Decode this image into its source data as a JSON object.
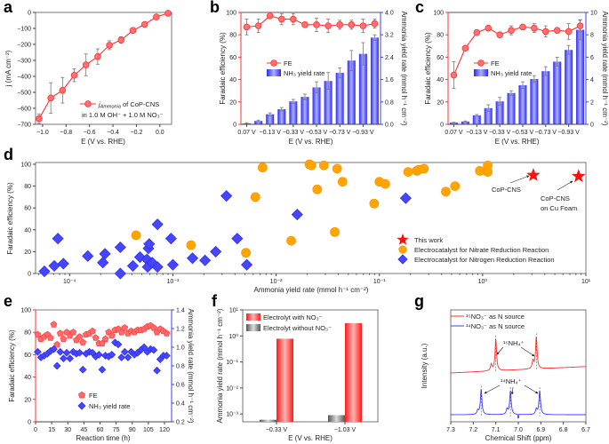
{
  "panel_letters": [
    "a",
    "b",
    "c",
    "d",
    "e",
    "f",
    "g"
  ],
  "colors": {
    "red": "#ff3030",
    "red_fill": "#ff7070",
    "blue": "#3c3cff",
    "orange": "#ffa500",
    "gray": "#777777"
  },
  "chart_data": [
    {
      "panel": "a",
      "type": "line",
      "x_label": "E (V vs. RHE)",
      "y_label": "j (mA cm⁻²)",
      "xlim": [
        -1.06,
        0.1
      ],
      "ylim": [
        -700,
        0
      ],
      "x_ticks": [
        -1.0,
        -0.8,
        -0.6,
        -0.4,
        -0.2,
        0.0
      ],
      "x_tick_labels": [
        "−1.0",
        "−0.8",
        "−0.6",
        "−0.4",
        "−0.2",
        "0.0"
      ],
      "y_ticks": [
        0,
        -100,
        -200,
        -300,
        -400,
        -500,
        -600,
        -700
      ],
      "y_tick_labels": [
        "0",
        "−100",
        "−200",
        "−300",
        "−400",
        "−500",
        "−600",
        "−700"
      ],
      "legend": {
        "symbol": "j",
        "sub": "Ammonia",
        "rest": " of CoP-CNS",
        "line2": "in 1.0 M OH⁻ + 1.0 M NO₃⁻"
      },
      "series": [
        {
          "x": [
            -1.03,
            -0.93,
            -0.83,
            -0.73,
            -0.63,
            -0.53,
            -0.43,
            -0.33,
            -0.23,
            -0.13,
            -0.03,
            0.07
          ],
          "y": [
            -665,
            -535,
            -487,
            -393,
            -328,
            -276,
            -205,
            -172,
            -113,
            -75,
            -28,
            -5
          ],
          "err": [
            30,
            95,
            80,
            40,
            68,
            48,
            28,
            20,
            15,
            8,
            8,
            5
          ]
        }
      ]
    },
    {
      "panel": "b",
      "type": "bar+line",
      "x_label": "E (V vs. RHE)",
      "y_label": "Faradaic efficiency (%)",
      "y2_label": "Ammonia yield rate (mmol h⁻¹ cm⁻²)",
      "categories": [
        "0.07 V",
        "−0.03 V",
        "−0.13 V",
        "−0.23 V",
        "−0.33 V",
        "−0.43 V",
        "−0.53 V",
        "−0.63 V",
        "−0.73 V",
        "−0.83 V",
        "−0.93 V",
        "−1.03 V"
      ],
      "x_ticks": [
        0,
        2,
        4,
        6,
        8,
        10
      ],
      "x_tick_labels": [
        "0.07 V",
        "−0.13 V",
        "−0.33 V",
        "−0.53 V",
        "−0.73 V",
        "−0.93 V"
      ],
      "ylim": [
        0,
        100
      ],
      "y2lim": [
        0,
        4.0
      ],
      "y_ticks": [
        0,
        20,
        40,
        60,
        80,
        100
      ],
      "y_tick_labels": [
        "0",
        "20",
        "40",
        "60",
        "80",
        "100"
      ],
      "y2_ticks": [
        0,
        0.8,
        1.6,
        2.4,
        3.2,
        4.0
      ],
      "y2_tick_labels": [
        "0.0",
        "0.8",
        "1.6",
        "2.4",
        "3.2",
        "4.0"
      ],
      "series": [
        {
          "name": "FE",
          "type": "line",
          "values": [
            87,
            88,
            97,
            94,
            94,
            89,
            89,
            88,
            89,
            89,
            88,
            90
          ],
          "err": [
            7,
            6,
            2,
            5,
            5,
            2,
            6,
            6,
            4,
            4,
            6,
            4
          ]
        },
        {
          "name": "NH₃ yield rate",
          "type": "bar",
          "values": [
            0.03,
            0.12,
            0.36,
            0.54,
            0.82,
            0.98,
            1.32,
            1.55,
            1.84,
            2.28,
            2.52,
            3.1
          ],
          "err": [
            0.02,
            0.03,
            0.05,
            0.06,
            0.07,
            0.1,
            0.2,
            0.3,
            0.18,
            0.36,
            0.4,
            0.1
          ]
        }
      ]
    },
    {
      "panel": "c",
      "type": "bar+line",
      "x_label": "E (V vs. RHE)",
      "y_label": "Faradaic efficiency (%)",
      "y2_label": "Ammonia yield rate (mmol h⁻¹ cm⁻²)",
      "categories": [
        "0.07 V",
        "−0.03 V",
        "−0.13 V",
        "−0.23 V",
        "−0.33 V",
        "−0.43 V",
        "−0.53 V",
        "−0.63 V",
        "−0.73 V",
        "−0.83 V",
        "−0.93 V",
        "−1.03 V"
      ],
      "x_ticks": [
        0,
        2,
        4,
        6,
        8,
        10
      ],
      "x_tick_labels": [
        "0.07 V",
        "−0.13 V",
        "−0.33 V",
        "−0.53 V",
        "−0.73 V",
        "−0.93 V"
      ],
      "ylim": [
        0,
        100
      ],
      "y2lim": [
        0,
        10
      ],
      "y_ticks": [
        0,
        20,
        40,
        60,
        80,
        100
      ],
      "y_tick_labels": [
        "0",
        "20",
        "40",
        "60",
        "80",
        "100"
      ],
      "y2_ticks": [
        0,
        2,
        4,
        6,
        8,
        10
      ],
      "y2_tick_labels": [
        "0",
        "2",
        "4",
        "6",
        "8",
        "10"
      ],
      "series": [
        {
          "name": "FE",
          "type": "line",
          "values": [
            44,
            68,
            82,
            86,
            80,
            84,
            87,
            86,
            83,
            84,
            83,
            88
          ],
          "err": [
            12,
            2,
            2,
            2,
            2,
            4,
            2,
            4,
            5,
            2,
            7,
            5
          ]
        },
        {
          "name": "NH₃ yield rate",
          "type": "bar",
          "values": [
            0.15,
            0.25,
            0.8,
            1.45,
            2.05,
            2.8,
            3.5,
            4.05,
            4.75,
            5.6,
            6.65,
            8.45
          ],
          "err": [
            0.03,
            0.05,
            0.08,
            0.3,
            0.35,
            0.2,
            0.3,
            0.3,
            0.4,
            0.4,
            0.4,
            0.9
          ]
        }
      ]
    },
    {
      "panel": "d",
      "type": "scatter",
      "x_scale": "log",
      "x_label": "Ammonia yield rate (mmol h⁻¹ cm⁻²)",
      "y_label": "Faradaic efficiency (%)",
      "xlim": [
        4.68e-05,
        10
      ],
      "ylim": [
        0,
        100
      ],
      "x_ticks": [
        0.0001,
        0.001,
        0.01,
        0.1,
        1,
        10
      ],
      "x_tick_labels": [
        "10⁻⁴",
        "10⁻³",
        "10⁻²",
        "10⁻¹",
        "10⁰",
        "10¹"
      ],
      "y_ticks": [
        0,
        20,
        40,
        60,
        80,
        100
      ],
      "y_tick_labels": [
        "0",
        "20",
        "40",
        "60",
        "80",
        "100"
      ],
      "legend_position": "bottom-right",
      "annotations": {
        "star1": "CoP-CNS",
        "star2_line1": "CoP-CNS",
        "star2_line2": "on Cu Foam"
      },
      "series": [
        {
          "name": "This work",
          "marker": "star",
          "x": [
            3.1,
            8.5
          ],
          "y": [
            90,
            89
          ]
        },
        {
          "name": "Electrocatalyst for Nitrate Reduction Reaction",
          "marker": "circle",
          "x": [
            0.00044,
            0.0015,
            0.0051,
            0.0063,
            0.0074,
            0.014,
            0.021,
            0.022,
            0.029,
            0.039,
            0.025,
            0.044,
            0.037,
            0.089,
            0.1,
            0.114,
            0.19,
            0.23,
            0.24,
            0.27,
            0.44,
            0.54,
            0.94,
            1.12,
            1.12
          ],
          "y": [
            35,
            26,
            19,
            70,
            97,
            30,
            100,
            99,
            99,
            96,
            77,
            84,
            38,
            64,
            84,
            82,
            93,
            94,
            95,
            96,
            75,
            80,
            94,
            99,
            93
          ]
        },
        {
          "name": "Electrocatalyst for Nitrogen Reduction Reaction",
          "marker": "diamond",
          "x": [
            5.7e-05,
            7.1e-05,
            7.7e-05,
            8.7e-05,
            0.00015,
            0.00021,
            0.00022,
            0.00031,
            0.00031,
            0.00041,
            0.00048,
            0.00056,
            0.00058,
            0.00059,
            0.00057,
            0.00063,
            0.00071,
            0.00071,
            0.00096,
            0.001,
            0.00155,
            0.00205,
            0.0026,
            0.0033,
            0.0042,
            0.0052,
            0.016,
            0.18
          ],
          "y": [
            2,
            7,
            32,
            9,
            16,
            10,
            18,
            24,
            0,
            7,
            15,
            13,
            23,
            27,
            6,
            10,
            6,
            45,
            32,
            8,
            14,
            12,
            20,
            71,
            32,
            8,
            54,
            69
          ]
        }
      ]
    },
    {
      "panel": "e",
      "type": "scatter",
      "x_label": "Reaction time (h)",
      "y_label": "Faradaic efficiency (%)",
      "y2_label": "Ammonia yield rate (mmol h⁻¹ cm⁻²)",
      "xlim": [
        0,
        126.6
      ],
      "ylim": [
        0,
        100
      ],
      "y2lim": [
        0.2,
        1.4
      ],
      "x_ticks": [
        0,
        15,
        30,
        45,
        60,
        75,
        90,
        105,
        120
      ],
      "x_tick_labels": [
        "0",
        "15",
        "30",
        "45",
        "60",
        "75",
        "90",
        "105",
        "120"
      ],
      "y_ticks": [
        0,
        20,
        40,
        60,
        80,
        100
      ],
      "y_tick_labels": [
        "0",
        "20",
        "40",
        "60",
        "80",
        "100"
      ],
      "y2_ticks": [
        0.2,
        0.4,
        0.6,
        0.8,
        1.0,
        1.2,
        1.4
      ],
      "y2_tick_labels": [
        "0.2",
        "0.4",
        "0.6",
        "0.8",
        "1.0",
        "1.2",
        "1.4"
      ],
      "series": [
        {
          "name": "FE",
          "marker": "pentagon",
          "values": [
            78,
            74,
            76,
            78,
            75,
            87,
            69,
            79,
            74,
            80,
            77,
            80,
            73,
            76,
            71,
            78,
            79,
            81,
            75,
            70,
            70,
            74,
            80,
            77,
            82,
            83,
            80,
            84,
            79,
            81,
            80,
            82,
            82,
            83,
            85,
            86,
            84,
            80,
            83,
            81,
            79
          ]
        },
        {
          "name": "NH₃ yield rate",
          "marker": "diamond",
          "values": [
            0.95,
            0.89,
            0.91,
            0.93,
            0.96,
            0.98,
            0.8,
            0.95,
            0.88,
            0.94,
            0.88,
            0.95,
            0.93,
            0.94,
            0.76,
            0.93,
            0.95,
            0.94,
            0.9,
            0.92,
            0.76,
            0.91,
            0.9,
            0.92,
            1.05,
            1.03,
            0.89,
            0.95,
            0.89,
            0.95,
            0.92,
            0.94,
            0.97,
            1.0,
            0.95,
            0.98,
            0.97,
            0.75,
            0.87,
            0.91,
            0.91
          ]
        }
      ],
      "time_start": 2,
      "time_step": 3
    },
    {
      "panel": "f",
      "type": "bar",
      "y_scale": "log",
      "x_label": "E (V vs. RHE)",
      "y_label": "Ammonia yield rate (mmol h⁻¹ cm⁻²)",
      "categories": [
        "−0.33 V",
        "−1.03 V"
      ],
      "ylim": [
        0.0005,
        10
      ],
      "y_ticks": [
        10,
        1,
        0.1,
        0.01,
        0.001
      ],
      "y_tick_labels": [
        "10¹",
        "10⁰",
        "10⁻¹",
        "10⁻²",
        "10⁻³"
      ],
      "series": [
        {
          "name": "Electrolyt without NO₃⁻",
          "values": [
            0.0006,
            0.0009
          ]
        },
        {
          "name": "Electrolyt with NO₃⁻",
          "values": [
            0.78,
            3.1
          ]
        }
      ]
    },
    {
      "panel": "g",
      "type": "line",
      "x_label": "Chemical Shift (ppm)",
      "y_label": "Intensity (a.u.)",
      "xlim": [
        7.3,
        6.7
      ],
      "x_ticks": [
        7.3,
        7.2,
        7.1,
        7.0,
        6.9,
        6.8,
        6.7
      ],
      "x_tick_labels": [
        "7.3",
        "7.2",
        "7.1",
        "7.0",
        "6.9",
        "6.8",
        "6.7"
      ],
      "annotations": {
        "n15": "¹⁵NH₄⁺",
        "n14": "¹⁴NH₄⁺"
      },
      "series": [
        {
          "name": "¹⁵NO₃⁻ as N source",
          "peaks": [
            {
              "shift": 7.1,
              "intensity": 1.0
            },
            {
              "shift": 7.12,
              "intensity": 0.2
            },
            {
              "shift": 6.92,
              "intensity": 1.0
            },
            {
              "shift": 6.935,
              "intensity": 0.25
            }
          ]
        },
        {
          "name": "¹⁴NO₃⁻ as N source",
          "peaks": [
            {
              "shift": 7.165,
              "intensity": 0.95
            },
            {
              "shift": 7.18,
              "intensity": 0.15
            },
            {
              "shift": 7.035,
              "intensity": 0.9
            },
            {
              "shift": 7.05,
              "intensity": 0.2
            },
            {
              "shift": 6.905,
              "intensity": 0.9
            },
            {
              "shift": 6.92,
              "intensity": 0.2
            }
          ]
        }
      ]
    }
  ]
}
